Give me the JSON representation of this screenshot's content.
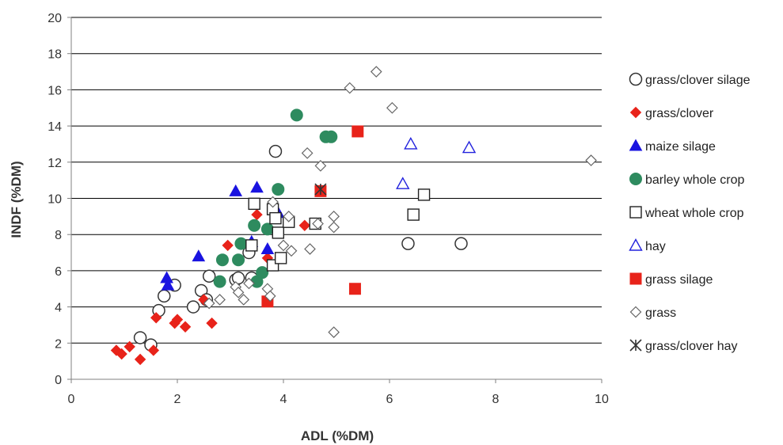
{
  "chart_data": {
    "type": "scatter",
    "title": "",
    "xlabel": "ADL (%DM)",
    "ylabel": "INDF (%DM)",
    "xlim": [
      0,
      10
    ],
    "ylim": [
      0,
      20
    ],
    "x_ticks": [
      0,
      2,
      4,
      6,
      8,
      10
    ],
    "y_ticks": [
      0,
      2,
      4,
      6,
      8,
      10,
      12,
      14,
      16,
      18,
      20
    ],
    "grid": "horizontal",
    "legend_position": "right",
    "series": [
      {
        "name": "grass/clover  silage",
        "marker": "circle-open",
        "color": "#333333",
        "points": [
          [
            1.3,
            2.3
          ],
          [
            1.5,
            1.9
          ],
          [
            1.65,
            3.8
          ],
          [
            1.75,
            4.6
          ],
          [
            1.95,
            5.2
          ],
          [
            2.3,
            4.0
          ],
          [
            2.45,
            4.9
          ],
          [
            2.55,
            4.4
          ],
          [
            2.6,
            5.7
          ],
          [
            3.1,
            5.5
          ],
          [
            3.15,
            5.6
          ],
          [
            3.35,
            7.0
          ],
          [
            3.4,
            5.6
          ],
          [
            3.85,
            12.6
          ],
          [
            6.35,
            7.5
          ],
          [
            7.35,
            7.5
          ]
        ]
      },
      {
        "name": "grass/clover",
        "marker": "diamond-filled",
        "color": "#e8231a",
        "points": [
          [
            0.85,
            1.6
          ],
          [
            0.95,
            1.4
          ],
          [
            1.1,
            1.8
          ],
          [
            1.3,
            1.1
          ],
          [
            1.55,
            1.6
          ],
          [
            1.6,
            3.4
          ],
          [
            1.95,
            3.1
          ],
          [
            2.0,
            3.3
          ],
          [
            2.15,
            2.9
          ],
          [
            2.5,
            4.4
          ],
          [
            2.65,
            3.1
          ],
          [
            2.95,
            7.4
          ],
          [
            3.5,
            9.1
          ],
          [
            3.7,
            6.7
          ],
          [
            4.4,
            8.5
          ]
        ]
      },
      {
        "name": "maize silage",
        "marker": "triangle-filled",
        "color": "#1a14e0",
        "points": [
          [
            1.8,
            5.6
          ],
          [
            1.82,
            5.2
          ],
          [
            2.4,
            6.8
          ],
          [
            3.1,
            10.4
          ],
          [
            3.4,
            7.6
          ],
          [
            3.5,
            10.6
          ],
          [
            3.7,
            7.2
          ],
          [
            3.9,
            9.2
          ]
        ]
      },
      {
        "name": "barley whole crop",
        "marker": "circle-filled",
        "color": "#2e8b5f",
        "points": [
          [
            2.8,
            5.4
          ],
          [
            2.85,
            6.6
          ],
          [
            3.15,
            6.6
          ],
          [
            3.2,
            7.5
          ],
          [
            3.45,
            8.5
          ],
          [
            3.5,
            5.4
          ],
          [
            3.6,
            5.9
          ],
          [
            3.7,
            8.3
          ],
          [
            3.9,
            10.5
          ],
          [
            4.25,
            14.6
          ],
          [
            4.8,
            13.4
          ],
          [
            4.9,
            13.4
          ]
        ]
      },
      {
        "name": "wheat whole crop",
        "marker": "square-open",
        "color": "#222222",
        "points": [
          [
            3.45,
            9.7
          ],
          [
            3.4,
            7.4
          ],
          [
            3.8,
            9.4
          ],
          [
            3.85,
            8.9
          ],
          [
            3.9,
            8.1
          ],
          [
            3.8,
            6.3
          ],
          [
            3.95,
            6.7
          ],
          [
            4.1,
            8.7
          ],
          [
            4.6,
            8.6
          ],
          [
            6.45,
            9.1
          ],
          [
            6.65,
            10.2
          ]
        ]
      },
      {
        "name": "hay",
        "marker": "triangle-open",
        "color": "#2222dd",
        "points": [
          [
            6.4,
            13.0
          ],
          [
            6.25,
            10.8
          ],
          [
            7.5,
            12.8
          ]
        ]
      },
      {
        "name": "grass silage",
        "marker": "square-filled",
        "color": "#e8231a",
        "points": [
          [
            3.7,
            4.3
          ],
          [
            4.7,
            10.4
          ],
          [
            5.35,
            5.0
          ],
          [
            5.4,
            13.7
          ]
        ]
      },
      {
        "name": "grass",
        "marker": "diamond-open",
        "color": "#666666",
        "points": [
          [
            2.6,
            4.2
          ],
          [
            2.8,
            4.4
          ],
          [
            3.1,
            5.1
          ],
          [
            3.15,
            4.8
          ],
          [
            3.25,
            4.4
          ],
          [
            3.35,
            5.3
          ],
          [
            3.7,
            5.0
          ],
          [
            3.75,
            4.6
          ],
          [
            3.8,
            9.8
          ],
          [
            4.0,
            7.4
          ],
          [
            4.15,
            7.1
          ],
          [
            4.1,
            9.0
          ],
          [
            4.45,
            12.5
          ],
          [
            4.5,
            7.2
          ],
          [
            4.65,
            8.6
          ],
          [
            4.7,
            11.8
          ],
          [
            4.95,
            9.0
          ],
          [
            4.95,
            8.4
          ],
          [
            4.95,
            2.6
          ],
          [
            5.25,
            16.1
          ],
          [
            5.75,
            17.0
          ],
          [
            6.05,
            15.0
          ],
          [
            9.8,
            12.1
          ]
        ]
      },
      {
        "name": "grass/clover hay",
        "marker": "asterisk",
        "color": "#333333",
        "points": [
          [
            4.7,
            10.5
          ]
        ]
      }
    ]
  }
}
